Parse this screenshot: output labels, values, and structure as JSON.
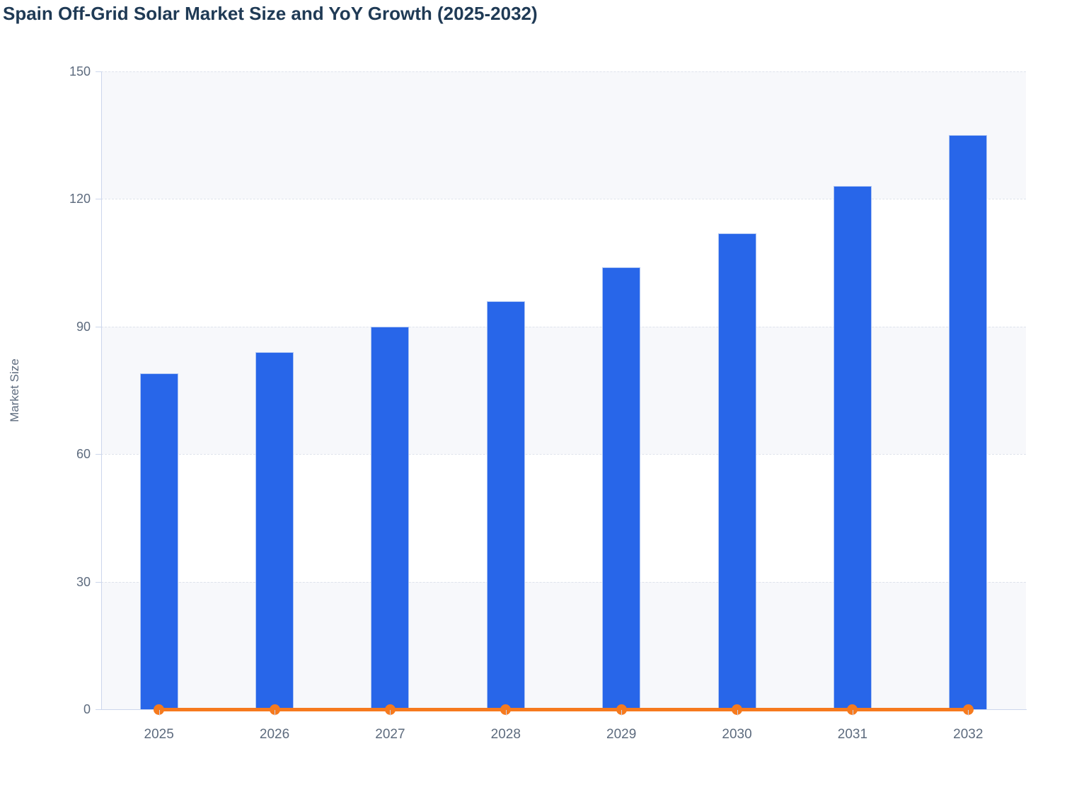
{
  "page": {
    "background": "#ffffff"
  },
  "chart_data": {
    "type": "bar",
    "title": "Spain Off-Grid Solar Market Size and YoY Growth (2025-2032)",
    "categories": [
      "2025",
      "2026",
      "2027",
      "2028",
      "2029",
      "2030",
      "2031",
      "2032"
    ],
    "series": [
      {
        "name": "Market Size",
        "type": "bar",
        "color": "#2866e9",
        "border_color": "#aec5f3",
        "values": [
          79,
          84,
          90,
          96,
          104,
          112,
          123,
          135
        ]
      },
      {
        "name": "YoY Growth",
        "type": "line",
        "color": "#f67a1e",
        "values": [
          0,
          0,
          0,
          0,
          0,
          0,
          0,
          0
        ]
      }
    ],
    "xlabel": "",
    "ylabel": "Market Size",
    "ylim": [
      0,
      150
    ],
    "yticks": [
      0,
      30,
      60,
      90,
      120,
      150
    ],
    "grid": "horizontal-dashed",
    "legend_position": "none",
    "plot_bands_alternate": true
  },
  "colors": {
    "title_text": "#1f3a55",
    "tick_text": "#5d6b7e",
    "axis_line": "#ccd6ec",
    "gridline": "#dfe3ec",
    "band_light": "#f7f8fb",
    "band_white": "#ffffff"
  }
}
